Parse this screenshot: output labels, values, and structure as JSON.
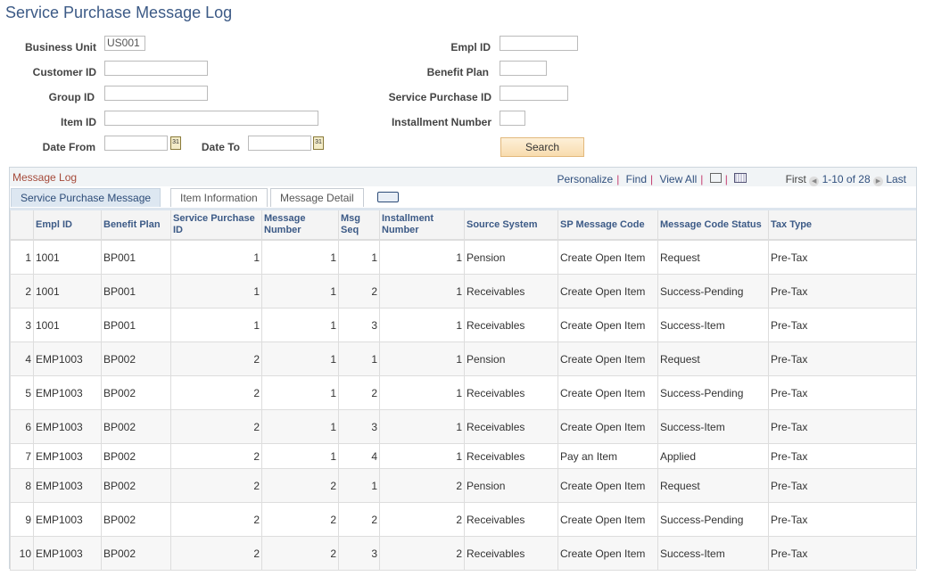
{
  "title": "Service Purchase Message Log",
  "form": {
    "business_unit_label": "Business Unit",
    "business_unit_value": "US001",
    "customer_id_label": "Customer ID",
    "group_id_label": "Group ID",
    "item_id_label": "Item ID",
    "date_from_label": "Date From",
    "date_to_label": "Date To",
    "empl_id_label": "Empl ID",
    "benefit_plan_label": "Benefit Plan",
    "service_purchase_id_label": "Service Purchase ID",
    "installment_number_label": "Installment Number",
    "search_label": "Search",
    "calendar_text": "31"
  },
  "grid": {
    "title": "Message Log",
    "personalize": "Personalize",
    "find": "Find",
    "view_all": "View All",
    "first": "First",
    "range": "1-10 of 28",
    "last": "Last",
    "tabs": [
      "Service Purchase Message",
      "Item Information",
      "Message Detail"
    ],
    "columns": [
      "",
      "Empl ID",
      "Benefit Plan",
      "Service Purchase ID",
      "Message Number",
      "Msg Seq",
      "Installment Number",
      "Source System",
      "SP Message Code",
      "Message Code Status",
      "Tax Type"
    ],
    "rows": [
      [
        "1",
        "1001",
        "BP001",
        "1",
        "1",
        "1",
        "1",
        "Pension",
        "Create Open Item",
        "Request",
        "Pre-Tax"
      ],
      [
        "2",
        "1001",
        "BP001",
        "1",
        "1",
        "2",
        "1",
        "Receivables",
        "Create Open Item",
        "Success-Pending",
        "Pre-Tax"
      ],
      [
        "3",
        "1001",
        "BP001",
        "1",
        "1",
        "3",
        "1",
        "Receivables",
        "Create Open Item",
        "Success-Item",
        "Pre-Tax"
      ],
      [
        "4",
        "EMP1003",
        "BP002",
        "2",
        "1",
        "1",
        "1",
        "Pension",
        "Create Open Item",
        "Request",
        "Pre-Tax"
      ],
      [
        "5",
        "EMP1003",
        "BP002",
        "2",
        "1",
        "2",
        "1",
        "Receivables",
        "Create Open Item",
        "Success-Pending",
        "Pre-Tax"
      ],
      [
        "6",
        "EMP1003",
        "BP002",
        "2",
        "1",
        "3",
        "1",
        "Receivables",
        "Create Open Item",
        "Success-Item",
        "Pre-Tax"
      ],
      [
        "7",
        "EMP1003",
        "BP002",
        "2",
        "1",
        "4",
        "1",
        "Receivables",
        "Pay an Item",
        "Applied",
        "Pre-Tax"
      ],
      [
        "8",
        "EMP1003",
        "BP002",
        "2",
        "2",
        "1",
        "2",
        "Pension",
        "Create Open Item",
        "Request",
        "Pre-Tax"
      ],
      [
        "9",
        "EMP1003",
        "BP002",
        "2",
        "2",
        "2",
        "2",
        "Receivables",
        "Create Open Item",
        "Success-Pending",
        "Pre-Tax"
      ],
      [
        "10",
        "EMP1003",
        "BP002",
        "2",
        "2",
        "3",
        "2",
        "Receivables",
        "Create Open Item",
        "Success-Item",
        "Pre-Tax"
      ]
    ]
  }
}
